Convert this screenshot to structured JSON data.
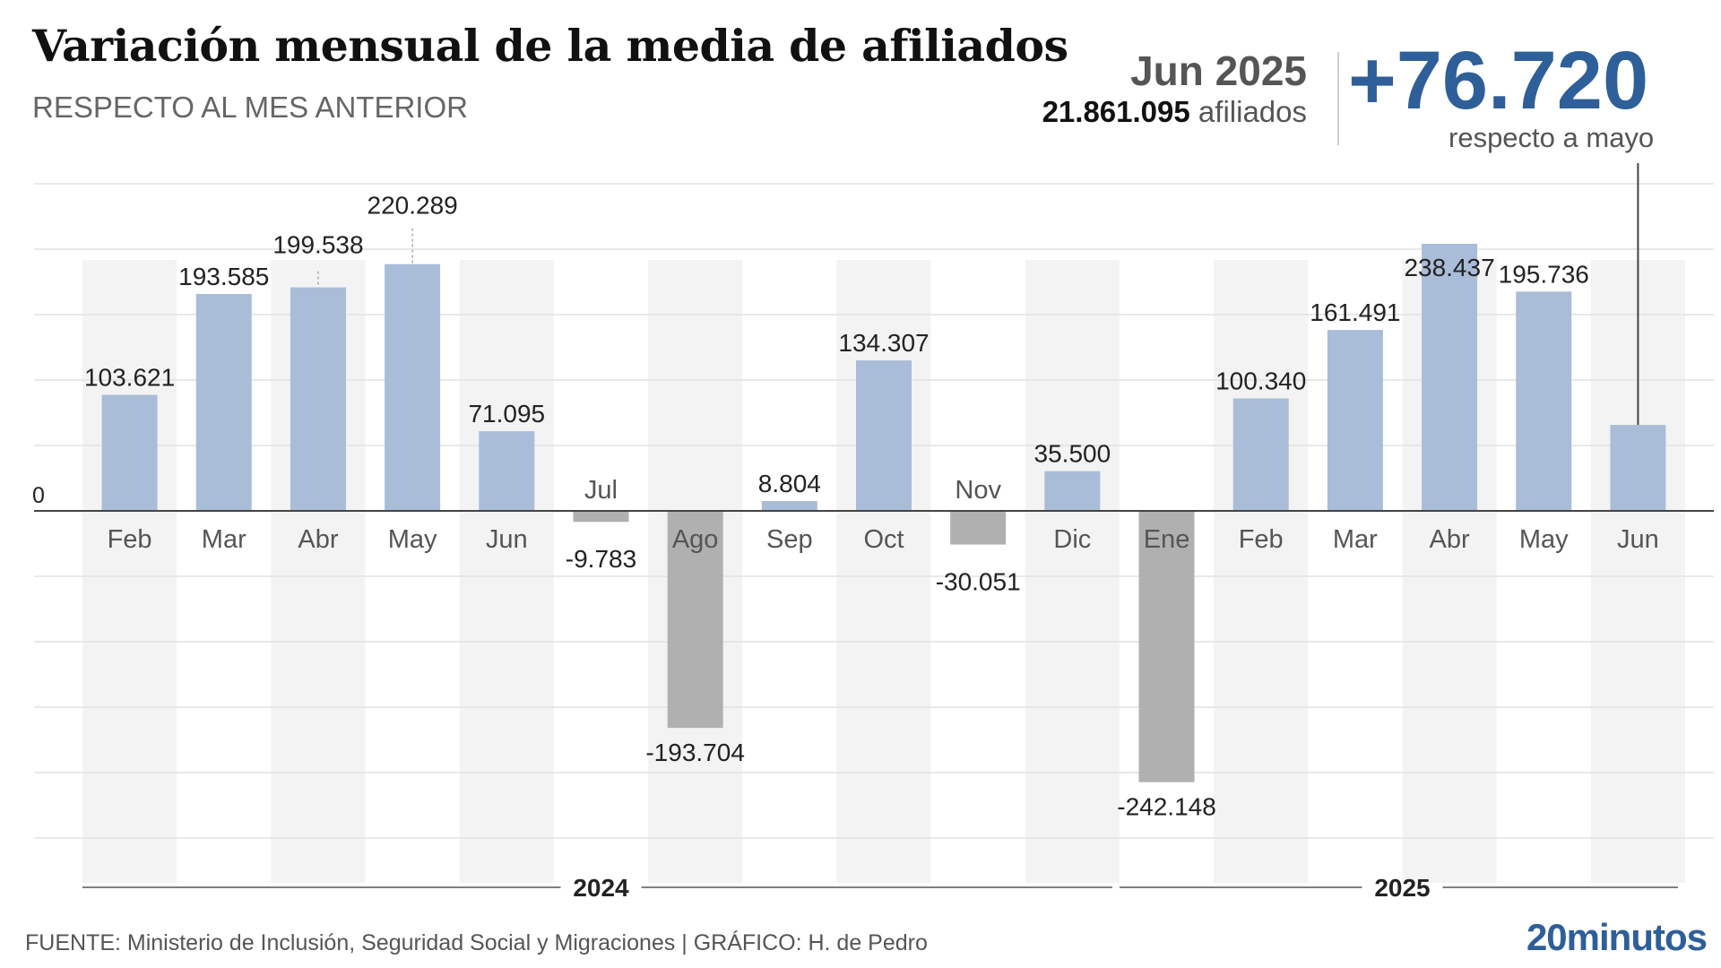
{
  "header": {
    "title": "Variación mensual de la media de afiliados",
    "subtitle": "RESPECTO AL MES ANTERIOR"
  },
  "highlight": {
    "date": "Jun 2025",
    "total_affiliates": "21.861.095",
    "total_suffix": "afiliados",
    "change": "+76.720",
    "change_note": "respecto a mayo"
  },
  "footer": {
    "source": "FUENTE: Ministerio de Inclusión, Seguridad Social y Migraciones  |  GRÁFICO: H. de Pedro",
    "logo": "20minutos"
  },
  "colors": {
    "positive": "#a9bdd8",
    "negative": "#b0b0b0",
    "accent": "#2f5f99",
    "band": "#f3f3f3",
    "grid": "#e2e2e2"
  },
  "chart_data": {
    "type": "bar",
    "title": "Variación mensual de la media de afiliados",
    "subtitle": "RESPECTO AL MES ANTERIOR",
    "zero_label": "0",
    "grid": true,
    "categories": [
      "Feb",
      "Mar",
      "Abr",
      "May",
      "Jun",
      "Jul",
      "Ago",
      "Sep",
      "Oct",
      "Nov",
      "Dic",
      "Ene",
      "Feb",
      "Mar",
      "Abr",
      "May",
      "Jun"
    ],
    "values": [
      103621,
      193585,
      199538,
      220289,
      71095,
      -9783,
      -193704,
      8804,
      134307,
      -30051,
      35500,
      -242148,
      100340,
      161491,
      238437,
      195736,
      76720
    ],
    "value_labels": [
      "103.621",
      "193.585",
      "199.538",
      "220.289",
      "71.095",
      "-9.783",
      "-193.704",
      "8.804",
      "134.307",
      "-30.051",
      "35.500",
      "-242.148",
      "100.340",
      "161.491",
      "238.437",
      "195.736",
      ""
    ],
    "ylim": [
      -250000,
      250000
    ],
    "groups": [
      {
        "label": "2024",
        "start": 0,
        "end": 10
      },
      {
        "label": "2025",
        "start": 11,
        "end": 16
      }
    ]
  }
}
